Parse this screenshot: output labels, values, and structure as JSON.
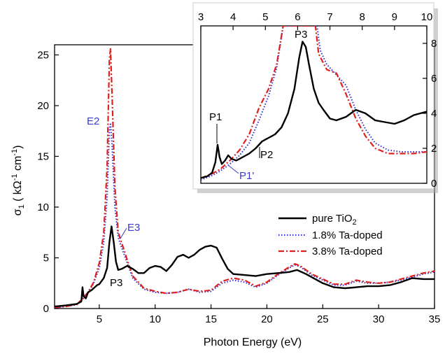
{
  "chart_data": [
    {
      "type": "line",
      "xlabel": "Photon Energy (eV)",
      "ylabel": "σ₁ ( kΩ⁻¹ cm⁻¹)",
      "xlim": [
        1,
        35
      ],
      "ylim": [
        0,
        26
      ],
      "xticks": [
        "5",
        "10",
        "15",
        "20",
        "25",
        "30",
        "35"
      ],
      "yticks": [
        "0",
        "5",
        "10",
        "15",
        "20",
        "25"
      ],
      "legend_position": "center-right",
      "series": [
        {
          "name": "pure TiO₂",
          "color": "#000000",
          "style": "solid",
          "points": [
            [
              1,
              0.2
            ],
            [
              2,
              0.3
            ],
            [
              3,
              0.45
            ],
            [
              3.4,
              0.7
            ],
            [
              3.5,
              2.1
            ],
            [
              3.6,
              1.2
            ],
            [
              3.8,
              1.0
            ],
            [
              4.0,
              1.6
            ],
            [
              4.3,
              1.8
            ],
            [
              4.8,
              2.3
            ],
            [
              5.0,
              2.4
            ],
            [
              5.4,
              3.0
            ],
            [
              5.7,
              4.0
            ],
            [
              5.9,
              6.5
            ],
            [
              6.1,
              8.1
            ],
            [
              6.3,
              6.5
            ],
            [
              6.5,
              4.6
            ],
            [
              6.7,
              3.8
            ],
            [
              7.0,
              3.9
            ],
            [
              7.5,
              4.2
            ],
            [
              8,
              3.9
            ],
            [
              8.5,
              3.5
            ],
            [
              9,
              3.5
            ],
            [
              9.5,
              4.0
            ],
            [
              10,
              4.2
            ],
            [
              10.5,
              4.1
            ],
            [
              11,
              3.7
            ],
            [
              11.5,
              4.3
            ],
            [
              12,
              5.1
            ],
            [
              12.5,
              5.3
            ],
            [
              13,
              5.0
            ],
            [
              13.5,
              5.3
            ],
            [
              14,
              5.8
            ],
            [
              14.5,
              6.1
            ],
            [
              15,
              6.2
            ],
            [
              15.5,
              6.0
            ],
            [
              16,
              4.9
            ],
            [
              16.5,
              3.9
            ],
            [
              17,
              3.4
            ],
            [
              18,
              3.3
            ],
            [
              19,
              3.2
            ],
            [
              20,
              3.4
            ],
            [
              21,
              3.5
            ],
            [
              22,
              3.6
            ],
            [
              22.7,
              3.8
            ],
            [
              23.5,
              3.4
            ],
            [
              24,
              3.1
            ],
            [
              25,
              2.5
            ],
            [
              26,
              2.1
            ],
            [
              27,
              2.0
            ],
            [
              28,
              2.1
            ],
            [
              29,
              2.2
            ],
            [
              30,
              2.2
            ],
            [
              31,
              2.3
            ],
            [
              32,
              2.6
            ],
            [
              33,
              3.0
            ],
            [
              34,
              2.9
            ],
            [
              35,
              2.9
            ]
          ]
        },
        {
          "name": "1.8% Ta-doped",
          "color": "#2d2dd6",
          "style": "dotted",
          "points": [
            [
              1,
              0.1
            ],
            [
              2,
              0.2
            ],
            [
              3,
              0.4
            ],
            [
              3.5,
              0.9
            ],
            [
              4,
              1.5
            ],
            [
              4.5,
              2.5
            ],
            [
              5,
              4.0
            ],
            [
              5.4,
              6.5
            ],
            [
              5.7,
              11
            ],
            [
              5.9,
              17.5
            ],
            [
              6.0,
              18.3
            ],
            [
              6.15,
              16
            ],
            [
              6.4,
              10
            ],
            [
              6.7,
              7.0
            ],
            [
              7.0,
              6.0
            ],
            [
              7.5,
              4.5
            ],
            [
              8,
              3.0
            ],
            [
              9,
              1.9
            ],
            [
              10,
              1.6
            ],
            [
              11,
              1.5
            ],
            [
              12,
              1.6
            ],
            [
              13,
              1.9
            ],
            [
              14,
              1.6
            ],
            [
              15,
              1.7
            ],
            [
              16,
              2.5
            ],
            [
              17,
              2.8
            ],
            [
              18,
              2.6
            ],
            [
              19,
              2.1
            ],
            [
              20,
              2.5
            ],
            [
              21,
              3.3
            ],
            [
              22,
              4.0
            ],
            [
              22.5,
              4.3
            ],
            [
              23,
              4.1
            ],
            [
              24,
              3.3
            ],
            [
              25,
              2.8
            ],
            [
              26,
              2.3
            ],
            [
              27,
              2.3
            ],
            [
              28,
              2.7
            ],
            [
              29,
              2.5
            ],
            [
              30,
              2.5
            ],
            [
              31,
              2.6
            ],
            [
              32,
              2.8
            ],
            [
              33,
              3.1
            ],
            [
              34,
              3.4
            ],
            [
              35,
              3.6
            ]
          ]
        },
        {
          "name": "3.8% Ta-doped",
          "color": "#e0201e",
          "style": "dashdot",
          "points": [
            [
              1,
              0.1
            ],
            [
              2,
              0.2
            ],
            [
              3,
              0.4
            ],
            [
              3.5,
              1.0
            ],
            [
              4,
              1.6
            ],
            [
              4.5,
              2.6
            ],
            [
              5,
              4.5
            ],
            [
              5.4,
              7.5
            ],
            [
              5.7,
              14
            ],
            [
              5.9,
              24.5
            ],
            [
              6.0,
              25.6
            ],
            [
              6.15,
              21
            ],
            [
              6.4,
              12
            ],
            [
              6.7,
              7.5
            ],
            [
              7.0,
              6.5
            ],
            [
              7.5,
              4.8
            ],
            [
              8,
              3.2
            ],
            [
              9,
              2.0
            ],
            [
              10,
              1.7
            ],
            [
              11,
              1.5
            ],
            [
              12,
              1.6
            ],
            [
              13,
              1.9
            ],
            [
              14,
              1.7
            ],
            [
              15,
              1.8
            ],
            [
              16,
              2.7
            ],
            [
              17,
              3.0
            ],
            [
              18,
              2.8
            ],
            [
              19,
              2.2
            ],
            [
              20,
              2.6
            ],
            [
              21,
              3.4
            ],
            [
              22,
              4.1
            ],
            [
              22.5,
              4.4
            ],
            [
              23,
              4.2
            ],
            [
              24,
              3.4
            ],
            [
              25,
              2.9
            ],
            [
              26,
              2.4
            ],
            [
              27,
              2.4
            ],
            [
              28,
              2.8
            ],
            [
              29,
              2.6
            ],
            [
              30,
              2.5
            ],
            [
              31,
              2.6
            ],
            [
              32,
              2.9
            ],
            [
              33,
              3.2
            ],
            [
              34,
              3.5
            ],
            [
              35,
              3.7
            ]
          ]
        }
      ],
      "annotations": [
        "E2",
        "E3",
        "P3"
      ]
    },
    {
      "type": "line",
      "role": "inset",
      "xlim": [
        3,
        10
      ],
      "ylim": [
        0,
        9
      ],
      "xticks": [
        "3",
        "4",
        "5",
        "6",
        "7",
        "8",
        "9",
        "10"
      ],
      "yticks": [
        "0",
        "2",
        "4",
        "6",
        "8"
      ],
      "series": [
        {
          "name": "pure TiO₂",
          "color": "#000000",
          "style": "solid",
          "points": [
            [
              3,
              0.3
            ],
            [
              3.2,
              0.4
            ],
            [
              3.35,
              0.6
            ],
            [
              3.45,
              1.2
            ],
            [
              3.52,
              2.2
            ],
            [
              3.58,
              1.5
            ],
            [
              3.65,
              1.1
            ],
            [
              3.75,
              1.3
            ],
            [
              3.85,
              1.6
            ],
            [
              3.95,
              1.4
            ],
            [
              4.1,
              1.3
            ],
            [
              4.3,
              1.5
            ],
            [
              4.5,
              1.7
            ],
            [
              4.7,
              2.0
            ],
            [
              4.9,
              2.4
            ],
            [
              5.1,
              2.6
            ],
            [
              5.3,
              2.8
            ],
            [
              5.5,
              3.2
            ],
            [
              5.7,
              4.0
            ],
            [
              5.9,
              5.4
            ],
            [
              6.05,
              7.2
            ],
            [
              6.15,
              8.1
            ],
            [
              6.25,
              7.8
            ],
            [
              6.35,
              6.8
            ],
            [
              6.5,
              5.4
            ],
            [
              6.65,
              4.6
            ],
            [
              6.8,
              4.2
            ],
            [
              7.0,
              3.7
            ],
            [
              7.2,
              3.6
            ],
            [
              7.5,
              3.8
            ],
            [
              7.8,
              4.2
            ],
            [
              8.1,
              4.0
            ],
            [
              8.4,
              3.6
            ],
            [
              8.7,
              3.5
            ],
            [
              9.0,
              3.4
            ],
            [
              9.3,
              3.6
            ],
            [
              9.6,
              3.9
            ],
            [
              10,
              4.1
            ]
          ]
        },
        {
          "name": "1.8% Ta-doped",
          "color": "#2d2dd6",
          "style": "dotted",
          "points": [
            [
              3,
              0.2
            ],
            [
              3.3,
              0.4
            ],
            [
              3.6,
              0.7
            ],
            [
              3.9,
              1.1
            ],
            [
              4.2,
              1.6
            ],
            [
              4.5,
              2.3
            ],
            [
              4.8,
              3.6
            ],
            [
              5.1,
              5.0
            ],
            [
              5.35,
              6.6
            ],
            [
              5.55,
              9.0
            ],
            [
              6.6,
              9.0
            ],
            [
              6.7,
              7.6
            ],
            [
              6.9,
              6.8
            ],
            [
              7.2,
              6.2
            ],
            [
              7.5,
              5.6
            ],
            [
              7.8,
              4.2
            ],
            [
              8.1,
              3.1
            ],
            [
              8.4,
              2.3
            ],
            [
              8.8,
              1.9
            ],
            [
              9.2,
              1.8
            ],
            [
              9.6,
              1.8
            ],
            [
              10,
              1.8
            ]
          ]
        },
        {
          "name": "3.8% Ta-doped",
          "color": "#e0201e",
          "style": "dashdot",
          "points": [
            [
              3,
              0.3
            ],
            [
              3.3,
              0.5
            ],
            [
              3.6,
              0.8
            ],
            [
              3.9,
              1.3
            ],
            [
              4.2,
              1.9
            ],
            [
              4.5,
              2.8
            ],
            [
              4.8,
              4.3
            ],
            [
              5.1,
              5.4
            ],
            [
              5.35,
              6.8
            ],
            [
              5.55,
              9.0
            ],
            [
              6.55,
              9.0
            ],
            [
              6.65,
              7.4
            ],
            [
              6.9,
              6.5
            ],
            [
              7.2,
              6.3
            ],
            [
              7.5,
              5.1
            ],
            [
              7.8,
              3.7
            ],
            [
              8.1,
              2.7
            ],
            [
              8.4,
              2.0
            ],
            [
              8.8,
              1.7
            ],
            [
              9.2,
              1.7
            ],
            [
              9.6,
              1.7
            ],
            [
              10,
              1.8
            ]
          ]
        }
      ],
      "annotations": [
        "P1",
        "P1'",
        "P2",
        "P3"
      ]
    }
  ],
  "legend": [
    {
      "label_main": "pure TiO",
      "label_sub": "2"
    },
    {
      "label_main": "1.8% Ta-doped",
      "label_sub": ""
    },
    {
      "label_main": "3.8% Ta-doped",
      "label_sub": ""
    }
  ],
  "labels": {
    "ylabel_sigma": "σ",
    "ylabel_sub": "1",
    "ylabel_rest": " ( kΩ",
    "ylabel_sup1": "-1",
    "ylabel_cm": " cm",
    "ylabel_sup2": "-1",
    "ylabel_close": ")",
    "xlabel": "Photon Energy (eV)",
    "E2": "E2",
    "E3": "E3",
    "P3_main": "P3",
    "P1": "P1",
    "P1p": "P1'",
    "P2": "P2",
    "P3_inset": "P3"
  }
}
